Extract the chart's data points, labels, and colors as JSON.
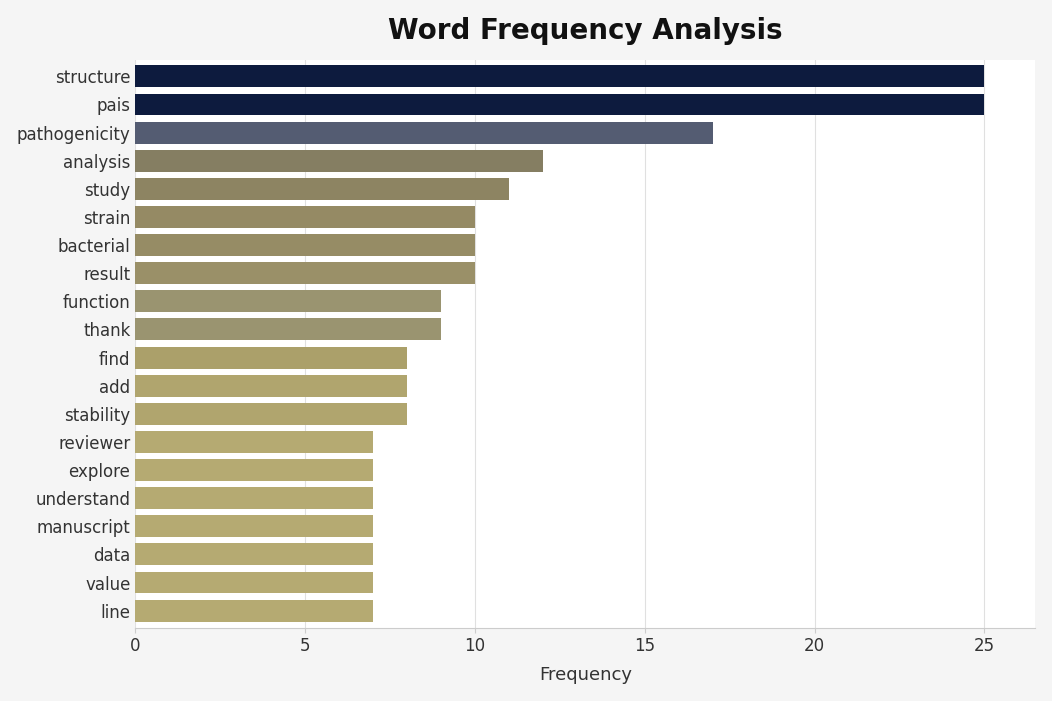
{
  "categories": [
    "line",
    "value",
    "data",
    "manuscript",
    "understand",
    "explore",
    "reviewer",
    "stability",
    "add",
    "find",
    "thank",
    "function",
    "result",
    "bacterial",
    "strain",
    "study",
    "analysis",
    "pathogenicity",
    "pais",
    "structure"
  ],
  "values": [
    7,
    7,
    7,
    7,
    7,
    7,
    7,
    8,
    8,
    8,
    9,
    9,
    10,
    10,
    10,
    11,
    12,
    17,
    25,
    25
  ],
  "bar_colors": [
    "#b5aa72",
    "#b5aa72",
    "#b5aa72",
    "#b5aa72",
    "#b5aa72",
    "#b5aa72",
    "#b5aa72",
    "#b0a56e",
    "#b0a56e",
    "#aba06a",
    "#9a9470",
    "#9a9470",
    "#9a9068",
    "#968c65",
    "#958a64",
    "#8d8462",
    "#857e62",
    "#545c72",
    "#0d1b3e",
    "#0d1b3e"
  ],
  "title": "Word Frequency Analysis",
  "title_fontsize": 20,
  "title_fontweight": "bold",
  "xlabel": "Frequency",
  "xlabel_fontsize": 13,
  "xlim": [
    0,
    26.5
  ],
  "xticks": [
    0,
    5,
    10,
    15,
    20,
    25
  ],
  "background_color": "#f5f5f5",
  "plot_area_color": "#ffffff",
  "bar_height": 0.78,
  "tick_label_fontsize": 12,
  "figsize": [
    10.52,
    7.01
  ],
  "dpi": 100
}
